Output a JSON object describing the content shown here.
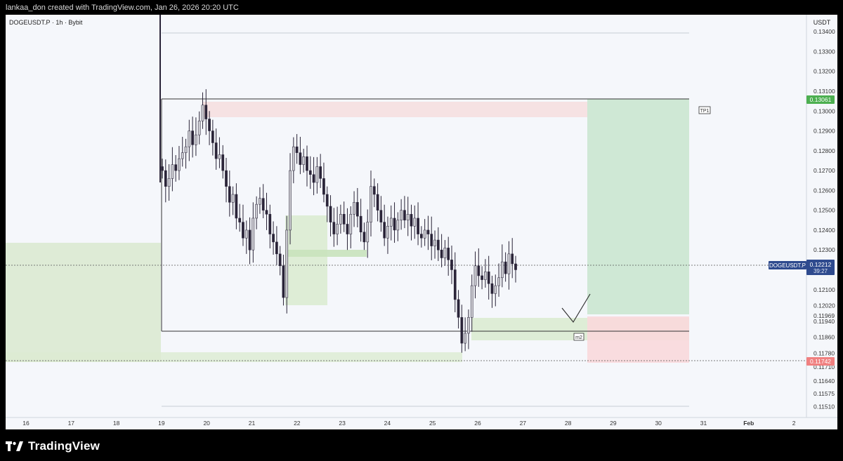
{
  "header": {
    "text": "lankaa_don created with TradingView.com, Jan 26, 2026 20:20 UTC"
  },
  "footer": {
    "brand": "TradingView"
  },
  "chart_data": {
    "type": "candlestick",
    "symbol_label": "DOGEUSDT.P · 1h · Bybit",
    "currency": "USDT",
    "ylim": [
      0.1148,
      0.135
    ],
    "y_ticks": [
      "0.13400",
      "0.13300",
      "0.13200",
      "0.13100",
      "0.13000",
      "0.12900",
      "0.12800",
      "0.12700",
      "0.12600",
      "0.12500",
      "0.12400",
      "0.12300",
      "0.12100",
      "0.12020",
      "0.11969",
      "0.11940",
      "0.11860",
      "0.11780",
      "0.11710",
      "0.11640",
      "0.11575",
      "0.11510"
    ],
    "x_ticks": [
      "16",
      "17",
      "18",
      "19",
      "20",
      "21",
      "22",
      "23",
      "24",
      "25",
      "26",
      "27",
      "28",
      "29",
      "30",
      "31",
      "Feb",
      "2"
    ],
    "current_price": {
      "symbol": "DOGEUSDT.P",
      "value": "0.12212",
      "countdown": "39:27",
      "color": "#2e4a8e"
    },
    "take_profit_level": {
      "value": "0.13061",
      "color": "#4caf50"
    },
    "stop_level": {
      "value": "0.11742",
      "color": "#f08080"
    },
    "annotations": [
      {
        "text": "TP1"
      },
      {
        "text": "m2"
      }
    ],
    "candles_close": [
      0.127,
      0.1262,
      0.1266,
      0.1273,
      0.127,
      0.1276,
      0.1279,
      0.1282,
      0.129,
      0.1283,
      0.1288,
      0.1295,
      0.1303,
      0.1296,
      0.129,
      0.1284,
      0.1276,
      0.1278,
      0.127,
      0.1262,
      0.1254,
      0.1258,
      0.1246,
      0.1244,
      0.1236,
      0.124,
      0.123,
      0.1246,
      0.1253,
      0.1256,
      0.125,
      0.1248,
      0.1238,
      0.1234,
      0.1228,
      0.1222,
      0.1206,
      0.124,
      0.127,
      0.1282,
      0.1279,
      0.1273,
      0.1277,
      0.127,
      0.1268,
      0.1264,
      0.1272,
      0.1266,
      0.1258,
      0.1252,
      0.1244,
      0.1238,
      0.1243,
      0.1248,
      0.1243,
      0.1238,
      0.1248,
      0.1254,
      0.1247,
      0.1239,
      0.1234,
      0.1244,
      0.1262,
      0.1258,
      0.125,
      0.1244,
      0.1236,
      0.1242,
      0.1246,
      0.124,
      0.1245,
      0.125,
      0.1245,
      0.1248,
      0.1242,
      0.1246,
      0.1238,
      0.1236,
      0.124,
      0.1238,
      0.1232,
      0.1235,
      0.123,
      0.1226,
      0.1231,
      0.1225,
      0.122,
      0.1205,
      0.1196,
      0.1183,
      0.1188,
      0.1196,
      0.1212,
      0.1222,
      0.1217,
      0.1215,
      0.1219,
      0.1213,
      0.1208,
      0.1212,
      0.1216,
      0.1224,
      0.1218,
      0.1228,
      0.1223,
      0.122
    ]
  }
}
